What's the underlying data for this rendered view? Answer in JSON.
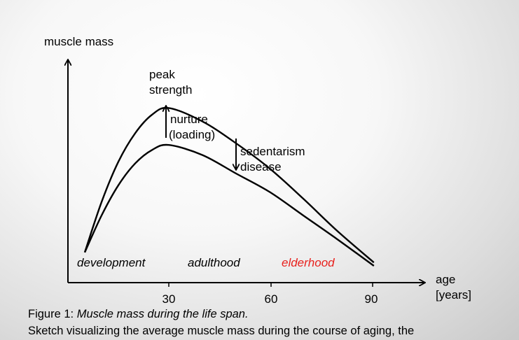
{
  "chart_data": {
    "type": "line",
    "ylabel": "muscle mass",
    "xlabel_lines": [
      "age",
      "[years]"
    ],
    "x_ticks": [
      30,
      60,
      90
    ],
    "xlim": [
      0,
      100
    ],
    "ylim": [
      0,
      1
    ],
    "series": [
      {
        "x": [
          5,
          10,
          15,
          20,
          25,
          30,
          40,
          50,
          60,
          70,
          80,
          91
        ],
        "y": [
          0.08,
          0.38,
          0.62,
          0.79,
          0.9,
          0.94,
          0.86,
          0.73,
          0.58,
          0.4,
          0.21,
          0.02
        ]
      },
      {
        "x": [
          5,
          10,
          15,
          20,
          25,
          30,
          40,
          50,
          60,
          70,
          80,
          91
        ],
        "y": [
          0.08,
          0.3,
          0.48,
          0.61,
          0.69,
          0.72,
          0.66,
          0.55,
          0.44,
          0.3,
          0.16,
          0.0
        ]
      }
    ],
    "annotations": {
      "peak_lines": [
        "peak",
        "strength"
      ],
      "nurture_lines": [
        "nurture",
        "(loading)"
      ],
      "sedentarism_lines": [
        "sedentarism",
        "disease"
      ]
    },
    "phases": [
      {
        "label": "development",
        "color": "#000000"
      },
      {
        "label": "adulthood",
        "color": "#000000"
      },
      {
        "label": "elderhood",
        "color": "#e8201c"
      }
    ]
  },
  "caption": {
    "prefix": "Figure 1: ",
    "title": "Muscle mass during the life span.",
    "line2": "Sketch visualizing the average  muscle mass during the course of aging, the"
  }
}
